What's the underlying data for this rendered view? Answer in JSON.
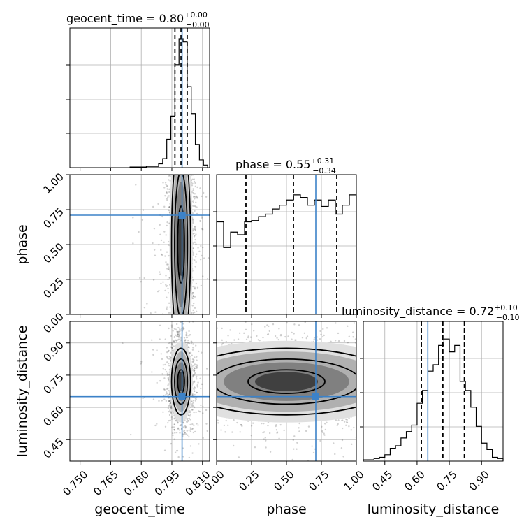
{
  "chart_data": {
    "type": "corner",
    "parameters": [
      "geocent_time",
      "phase",
      "luminosity_distance"
    ],
    "titles": {
      "geocent_time": {
        "label": "geocent_time = 0.80",
        "sup": "+0.00",
        "sub": "−0.00"
      },
      "phase": {
        "label": "phase = 0.55",
        "sup": "+0.31",
        "sub": "−0.34"
      },
      "luminosity_distance": {
        "label": "luminosity_distance = 0.72",
        "sup": "+0.10",
        "sub": "−0.10"
      }
    },
    "axis_labels": {
      "x": [
        "geocent_time",
        "phase",
        "luminosity_distance"
      ],
      "y": [
        "phase",
        "luminosity_distance"
      ]
    },
    "ranges": {
      "geocent_time": [
        0.745,
        0.8135
      ],
      "phase": [
        0.0,
        1.0
      ],
      "luminosity_distance": [
        0.35,
        1.0
      ]
    },
    "ticks": {
      "geocent_time": [
        "0.750",
        "0.765",
        "0.780",
        "0.795",
        "0.810"
      ],
      "phase": [
        "0.00",
        "0.25",
        "0.50",
        "0.75",
        "1.00"
      ],
      "luminosity_distance": [
        "0.45",
        "0.60",
        "0.75",
        "0.90"
      ]
    },
    "truths": {
      "geocent_time": 0.8,
      "phase": 0.71,
      "luminosity_distance": 0.65
    },
    "quantiles": {
      "geocent_time": [
        0.7965,
        0.7995,
        0.8025
      ],
      "phase": [
        0.21,
        0.55,
        0.86
      ],
      "luminosity_distance": [
        0.62,
        0.72,
        0.82
      ]
    },
    "histograms": {
      "geocent_time": {
        "edges": [
          0.7745,
          0.7765,
          0.7785,
          0.7805,
          0.7825,
          0.7845,
          0.7865,
          0.7885,
          0.7905,
          0.7925,
          0.7945,
          0.7965,
          0.7985,
          0.8005,
          0.8025,
          0.8045,
          0.8065,
          0.8085,
          0.8105,
          0.8125
        ],
        "counts": [
          0.005,
          0.005,
          0.005,
          0.005,
          0.01,
          0.01,
          0.01,
          0.03,
          0.07,
          0.22,
          0.4,
          0.8,
          1.0,
          0.98,
          0.63,
          0.42,
          0.18,
          0.06,
          0.02
        ]
      },
      "phase": {
        "edges": [
          0.0,
          0.05,
          0.1,
          0.15,
          0.2,
          0.25,
          0.3,
          0.35,
          0.4,
          0.45,
          0.5,
          0.55,
          0.6,
          0.65,
          0.7,
          0.75,
          0.8,
          0.85,
          0.9,
          0.95,
          1.0
        ],
        "counts": [
          0.72,
          0.52,
          0.64,
          0.62,
          0.72,
          0.73,
          0.76,
          0.78,
          0.82,
          0.85,
          0.89,
          0.93,
          0.91,
          0.85,
          0.89,
          0.84,
          0.89,
          0.78,
          0.85,
          0.93
        ]
      },
      "luminosity_distance": {
        "edges": [
          0.35,
          0.375,
          0.4,
          0.425,
          0.45,
          0.475,
          0.5,
          0.525,
          0.55,
          0.575,
          0.6,
          0.625,
          0.65,
          0.675,
          0.7,
          0.725,
          0.75,
          0.775,
          0.8,
          0.825,
          0.85,
          0.875,
          0.9,
          0.925,
          0.95,
          0.975,
          1.0
        ],
        "counts": [
          0.01,
          0.01,
          0.02,
          0.03,
          0.05,
          0.1,
          0.12,
          0.18,
          0.23,
          0.28,
          0.45,
          0.55,
          0.7,
          0.75,
          0.9,
          0.95,
          0.85,
          0.9,
          0.62,
          0.55,
          0.42,
          0.27,
          0.14,
          0.09,
          0.03,
          0.02
        ]
      }
    },
    "grid": true,
    "colors": {
      "truth": "#3c82c8",
      "contour": "#000000",
      "density": "#404040"
    }
  }
}
